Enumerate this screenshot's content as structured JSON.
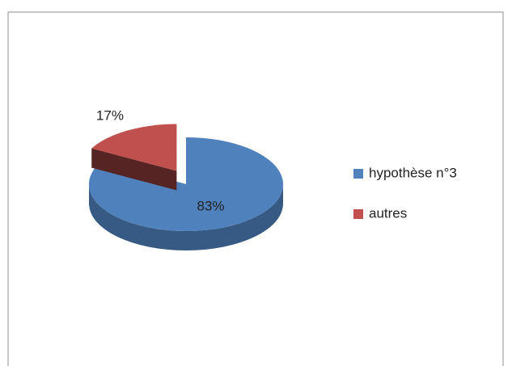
{
  "chart_data": {
    "type": "pie",
    "categories": [
      "hypothèse n°3",
      "autres"
    ],
    "values": [
      83,
      17
    ],
    "value_labels": [
      "83%",
      "17%"
    ],
    "colors": [
      "#4f81bd",
      "#c0504d"
    ],
    "exploded": [
      false,
      true
    ],
    "legend": "right"
  }
}
